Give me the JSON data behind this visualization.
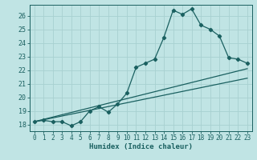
{
  "xlabel": "Humidex (Indice chaleur)",
  "bg_color": "#c0e4e4",
  "grid_color": "#a8d0d0",
  "line_color": "#1a6060",
  "xlim": [
    -0.5,
    23.5
  ],
  "ylim": [
    17.5,
    26.8
  ],
  "xticks": [
    0,
    1,
    2,
    3,
    4,
    5,
    6,
    7,
    8,
    9,
    10,
    11,
    12,
    13,
    14,
    15,
    16,
    17,
    18,
    19,
    20,
    21,
    22,
    23
  ],
  "yticks": [
    18,
    19,
    20,
    21,
    22,
    23,
    24,
    25,
    26
  ],
  "curve1_x": [
    0,
    1,
    2,
    3,
    4,
    5,
    6,
    7,
    8,
    9,
    10,
    11,
    12,
    13,
    14,
    15,
    16,
    17,
    18,
    19,
    20,
    21,
    22,
    23
  ],
  "curve1_y": [
    18.2,
    18.3,
    18.2,
    18.2,
    17.9,
    18.2,
    19.0,
    19.3,
    18.9,
    19.5,
    20.3,
    22.2,
    22.5,
    22.8,
    24.4,
    26.4,
    26.1,
    26.5,
    25.3,
    25.0,
    24.5,
    22.9,
    22.8,
    22.5
  ],
  "curve2_x": [
    0,
    23
  ],
  "curve2_y": [
    18.2,
    21.4
  ],
  "curve3_x": [
    0,
    23
  ],
  "curve3_y": [
    18.2,
    22.1
  ]
}
